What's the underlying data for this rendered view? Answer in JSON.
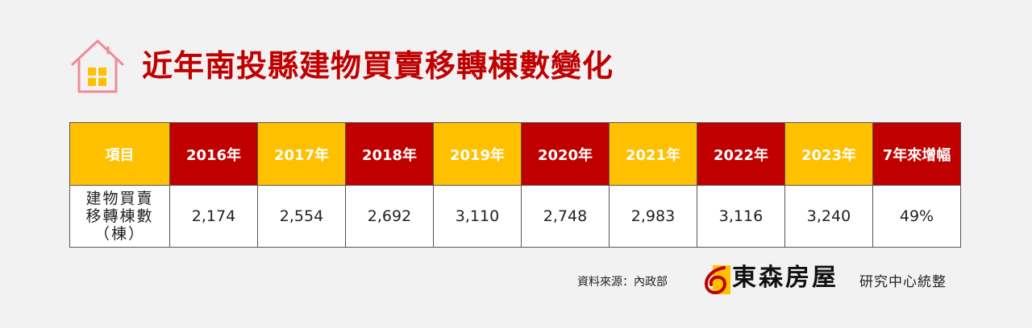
{
  "title": "近年南投縣建物買賣移轉棟數變化",
  "icons": {
    "header": "house-icon",
    "brand": "dongsen-logo-icon"
  },
  "colors": {
    "accent_red": "#c00000",
    "accent_gold": "#ffc000",
    "percent_red": "#ff0000"
  },
  "table": {
    "headers": [
      "項目",
      "2016年",
      "2017年",
      "2018年",
      "2019年",
      "2020年",
      "2021年",
      "2022年",
      "2023年",
      "7年來增幅"
    ],
    "row": {
      "label_lines": [
        "建物買賣",
        "移轉棟數",
        "（棟）"
      ],
      "values": [
        "2,174",
        "2,554",
        "2,692",
        "3,110",
        "2,748",
        "2,983",
        "3,116",
        "3,240"
      ],
      "change": "49%"
    }
  },
  "footer": {
    "source": "資料來源：內政部",
    "brand_name": "東森房屋",
    "brand_suffix": "研究中心統整"
  }
}
